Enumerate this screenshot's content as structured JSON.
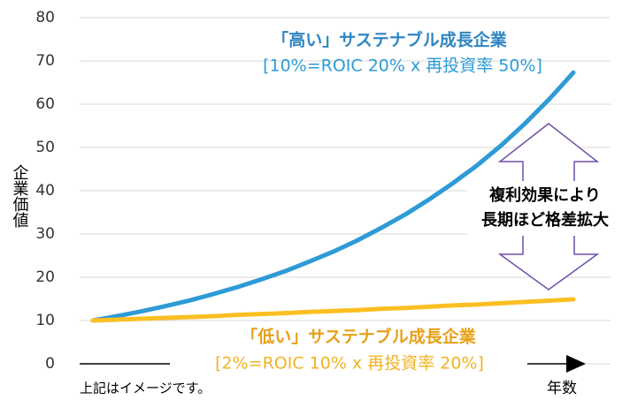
{
  "chart_data": {
    "type": "line",
    "categories": [
      null,
      null,
      null,
      null,
      null,
      null,
      null,
      null,
      null,
      null,
      null,
      null,
      null,
      null,
      null,
      null,
      null,
      null,
      null,
      null,
      null
    ],
    "series": [
      {
        "name": "「高い」サステナブル成長企業",
        "color": "#2e9bd6",
        "values": [
          10,
          11,
          12.1,
          13.3,
          14.6,
          16.1,
          17.7,
          19.5,
          21.4,
          23.6,
          25.9,
          28.5,
          31.4,
          34.5,
          38.0,
          41.8,
          45.9,
          50.5,
          55.6,
          61.2,
          67.3
        ]
      },
      {
        "name": "「低い」サステナブル成長企業",
        "color": "#fbbf22",
        "values": [
          10,
          10.2,
          10.4,
          10.6,
          10.8,
          11.0,
          11.3,
          11.5,
          11.7,
          12.0,
          12.2,
          12.4,
          12.7,
          12.9,
          13.2,
          13.5,
          13.7,
          14.0,
          14.3,
          14.6,
          14.9
        ]
      }
    ],
    "ylim": [
      0,
      80
    ],
    "yticks": [
      0,
      10,
      20,
      30,
      40,
      50,
      60,
      70,
      80
    ],
    "grid": true,
    "y_label": "企業価値",
    "x_label": "年数",
    "annotations": {
      "high_formula": "[10%=ROIC 20% x 再投資率 50%]",
      "low_formula": "[2%=ROIC 10% x 再投資率 20%]",
      "gap_line1": "複利効果により",
      "gap_line2": "長期ほど格差拡大",
      "note": "上記はイメージです。"
    }
  }
}
